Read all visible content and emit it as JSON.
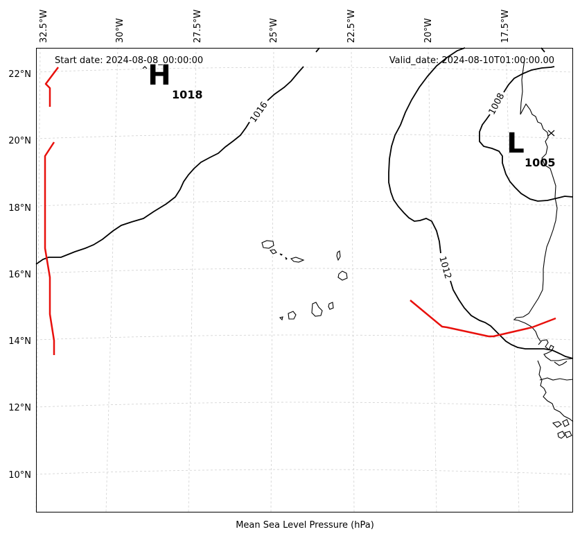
{
  "map": {
    "start_date": "Start date: 2024-08-08_00:00:00",
    "valid_date": "Valid_date: 2024-08-10T01:00:00.00",
    "footer_label": "Mean Sea Level Pressure (hPa)",
    "lon_ticks": [
      "32.5°W",
      "30°W",
      "27.5°W",
      "25°W",
      "22.5°W",
      "20°W",
      "17.5°W"
    ],
    "lat_ticks": [
      "22°N",
      "20°N",
      "18°N",
      "16°N",
      "14°N",
      "12°N",
      "10°N"
    ],
    "isobar_labels": [
      "1016",
      "1012",
      "1008"
    ],
    "pressure_centers": [
      {
        "type": "high",
        "letter": "H",
        "value": "1018"
      },
      {
        "type": "low",
        "letter": "L",
        "value": "1005"
      }
    ],
    "colors": {
      "front": "#e8100c",
      "isobar": "#000000",
      "grid": "#d0d0d0"
    }
  }
}
